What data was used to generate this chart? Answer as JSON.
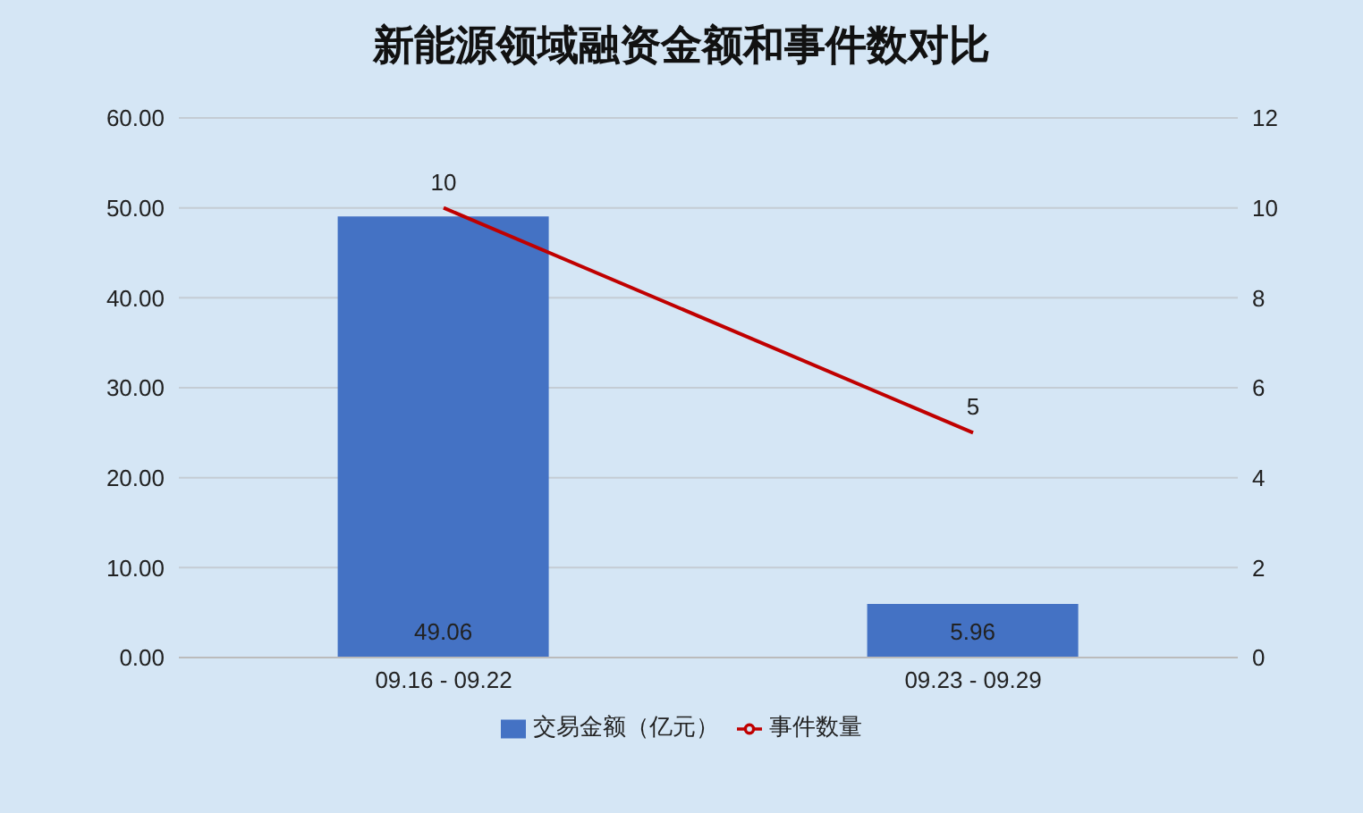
{
  "chart_data": {
    "type": "bar",
    "title": "新能源领域融资金额和事件数对比",
    "categories": [
      "09.16 - 09.22",
      "09.23 - 09.29"
    ],
    "series": [
      {
        "name": "交易金额（亿元）",
        "color": "#4472c4",
        "values": [
          49.06,
          5.96
        ]
      },
      {
        "name": "事件数量",
        "type": "line",
        "axis": "y2",
        "color": "#c00000",
        "values": [
          10,
          5
        ]
      }
    ],
    "ylim": [
      0,
      60
    ],
    "yticks": [
      {
        "value": 0,
        "label": "0.00"
      },
      {
        "value": 10,
        "label": "10.00"
      },
      {
        "value": 20,
        "label": "20.00"
      },
      {
        "value": 30,
        "label": "30.00"
      },
      {
        "value": 40,
        "label": "40.00"
      },
      {
        "value": 50,
        "label": "50.00"
      },
      {
        "value": 60,
        "label": "60.00"
      }
    ],
    "y2lim": [
      0,
      12
    ],
    "y2ticks": [
      0,
      2,
      4,
      6,
      8,
      10,
      12
    ],
    "grid": "y",
    "legend": "bottom",
    "data_labels": true
  }
}
